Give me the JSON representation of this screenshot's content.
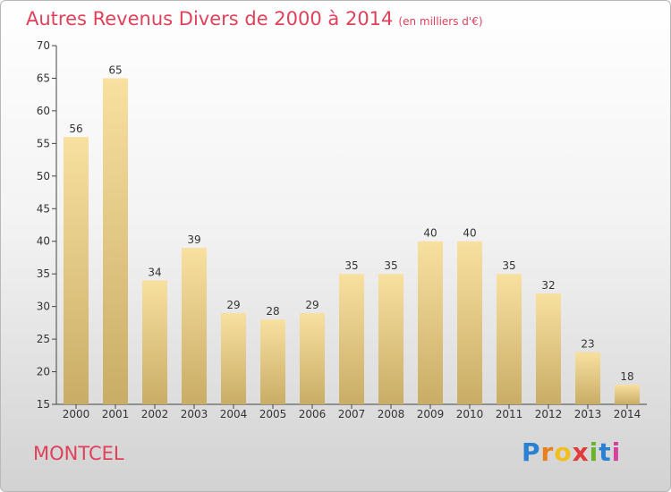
{
  "title": "Autres Revenus Divers de 2000 à 2014",
  "unit": "(en milliers d'€)",
  "commune": "MONTCEL",
  "logo": {
    "letters": [
      "P",
      "r",
      "o",
      "x",
      "i",
      "t",
      "i"
    ],
    "colors": [
      "#2a80d2",
      "#e8801e",
      "#f0c020",
      "#e03a3a",
      "#6ab42a",
      "#2a80d2",
      "#d6409e"
    ]
  },
  "colors": {
    "accent": "#e0415a",
    "bar_light": "#f8e0a0",
    "bar_dark": "#c9ad66"
  },
  "chart_data": {
    "type": "bar",
    "title": "Autres Revenus Divers de 2000 à 2014",
    "categories": [
      "2000",
      "2001",
      "2002",
      "2003",
      "2004",
      "2005",
      "2006",
      "2007",
      "2008",
      "2009",
      "2010",
      "2011",
      "2012",
      "2013",
      "2014"
    ],
    "values": [
      56,
      65,
      34,
      39,
      29,
      28,
      29,
      35,
      35,
      40,
      40,
      35,
      32,
      23,
      18
    ],
    "ylim": [
      15,
      70
    ],
    "yticks": [
      15,
      20,
      25,
      30,
      35,
      40,
      45,
      50,
      55,
      60,
      65,
      70
    ],
    "grid": false
  }
}
